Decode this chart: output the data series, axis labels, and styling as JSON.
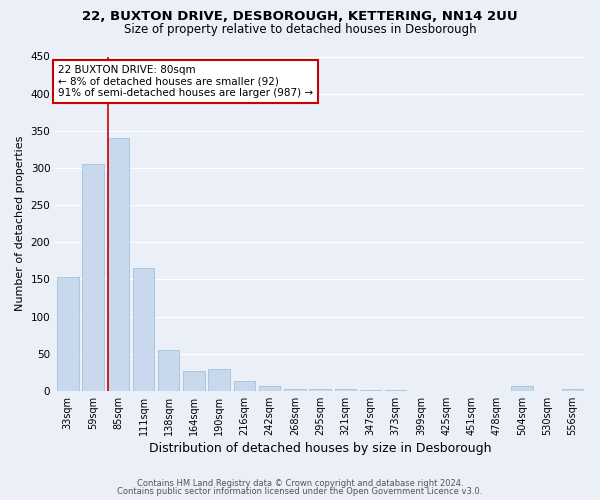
{
  "title_line1": "22, BUXTON DRIVE, DESBOROUGH, KETTERING, NN14 2UU",
  "title_line2": "Size of property relative to detached houses in Desborough",
  "xlabel": "Distribution of detached houses by size in Desborough",
  "ylabel": "Number of detached properties",
  "bar_color": "#c8d9ed",
  "bar_edge_color": "#9bbcd4",
  "categories": [
    "33sqm",
    "59sqm",
    "85sqm",
    "111sqm",
    "138sqm",
    "164sqm",
    "190sqm",
    "216sqm",
    "242sqm",
    "268sqm",
    "295sqm",
    "321sqm",
    "347sqm",
    "373sqm",
    "399sqm",
    "425sqm",
    "451sqm",
    "478sqm",
    "504sqm",
    "530sqm",
    "556sqm"
  ],
  "values": [
    153,
    305,
    340,
    165,
    55,
    27,
    30,
    13,
    7,
    3,
    2,
    2,
    1,
    1,
    0,
    0,
    0,
    0,
    7,
    0,
    3
  ],
  "red_line_index": 2,
  "annotation_text": "22 BUXTON DRIVE: 80sqm\n← 8% of detached houses are smaller (92)\n91% of semi-detached houses are larger (987) →",
  "annotation_box_color": "#ffffff",
  "annotation_box_edgecolor": "#cc0000",
  "ylim": [
    0,
    450
  ],
  "yticks": [
    0,
    50,
    100,
    150,
    200,
    250,
    300,
    350,
    400,
    450
  ],
  "footer_line1": "Contains HM Land Registry data © Crown copyright and database right 2024.",
  "footer_line2": "Contains public sector information licensed under the Open Government Licence v3.0.",
  "bg_color": "#eaeff8",
  "grid_color": "#ffffff",
  "title_fontsize": 9.5,
  "subtitle_fontsize": 8.5,
  "tick_fontsize": 7,
  "ylabel_fontsize": 8,
  "xlabel_fontsize": 9,
  "footer_fontsize": 6,
  "annotation_fontsize": 7.5
}
